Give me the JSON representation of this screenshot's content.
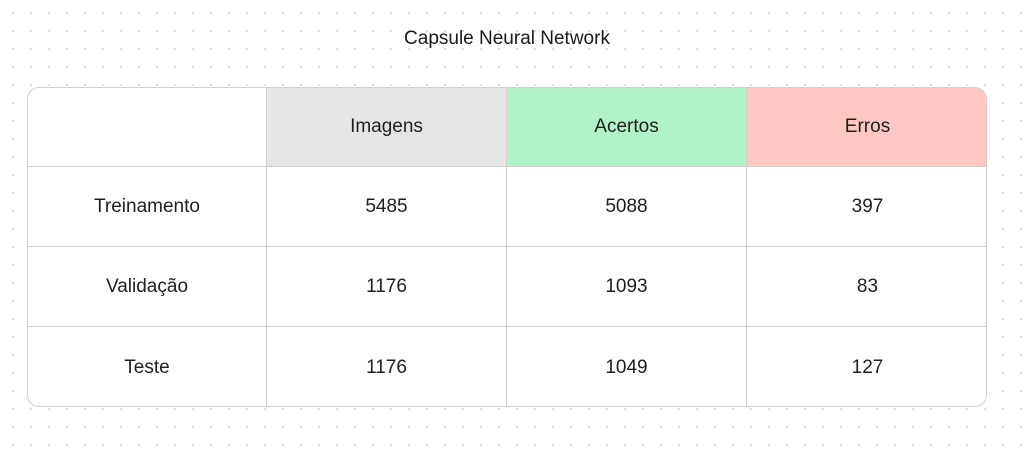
{
  "title": "Capsule Neural Network",
  "colors": {
    "imagens_header": "#e5e5e5",
    "acertos_header": "#b0f3c8",
    "erros_header": "#ffc7c2"
  },
  "table": {
    "columns": [
      "",
      "Imagens",
      "Acertos",
      "Erros"
    ],
    "rows": [
      {
        "label": "Treinamento",
        "imagens": "5485",
        "acertos": "5088",
        "erros": "397"
      },
      {
        "label": "Validação",
        "imagens": "1176",
        "acertos": "1093",
        "erros": "83"
      },
      {
        "label": "Teste",
        "imagens": "1176",
        "acertos": "1049",
        "erros": "127"
      }
    ]
  }
}
